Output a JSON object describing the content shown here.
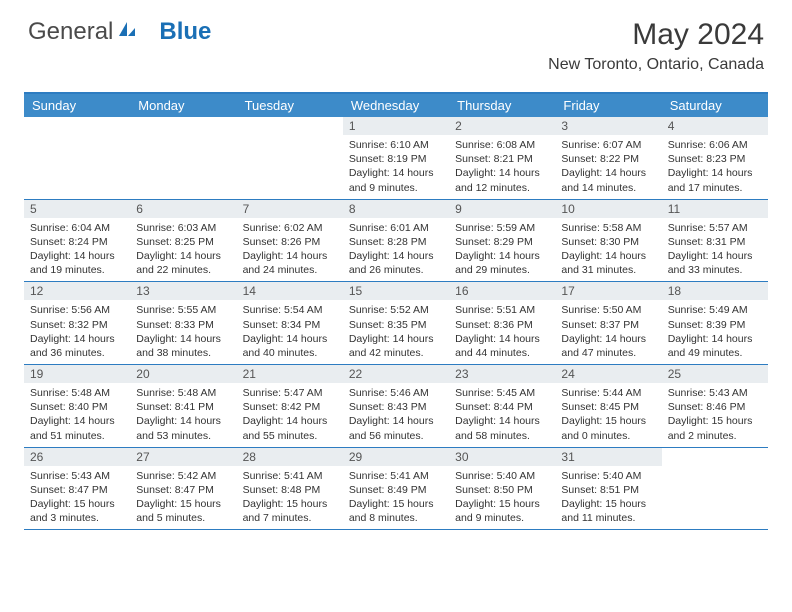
{
  "logo": {
    "text1": "General",
    "text2": "Blue"
  },
  "title": "May 2024",
  "location": "New Toronto, Ontario, Canada",
  "colors": {
    "header_bg": "#3d8bc9",
    "border": "#2d7cc1",
    "daynum_bg": "#e9edf0",
    "logo_gray": "#4a4a4a",
    "logo_blue": "#1a6fb5"
  },
  "day_names": [
    "Sunday",
    "Monday",
    "Tuesday",
    "Wednesday",
    "Thursday",
    "Friday",
    "Saturday"
  ],
  "weeks": [
    [
      {
        "empty": true
      },
      {
        "empty": true
      },
      {
        "empty": true
      },
      {
        "num": "1",
        "sunrise": "6:10 AM",
        "sunset": "8:19 PM",
        "daylight": "14 hours and 9 minutes."
      },
      {
        "num": "2",
        "sunrise": "6:08 AM",
        "sunset": "8:21 PM",
        "daylight": "14 hours and 12 minutes."
      },
      {
        "num": "3",
        "sunrise": "6:07 AM",
        "sunset": "8:22 PM",
        "daylight": "14 hours and 14 minutes."
      },
      {
        "num": "4",
        "sunrise": "6:06 AM",
        "sunset": "8:23 PM",
        "daylight": "14 hours and 17 minutes."
      }
    ],
    [
      {
        "num": "5",
        "sunrise": "6:04 AM",
        "sunset": "8:24 PM",
        "daylight": "14 hours and 19 minutes."
      },
      {
        "num": "6",
        "sunrise": "6:03 AM",
        "sunset": "8:25 PM",
        "daylight": "14 hours and 22 minutes."
      },
      {
        "num": "7",
        "sunrise": "6:02 AM",
        "sunset": "8:26 PM",
        "daylight": "14 hours and 24 minutes."
      },
      {
        "num": "8",
        "sunrise": "6:01 AM",
        "sunset": "8:28 PM",
        "daylight": "14 hours and 26 minutes."
      },
      {
        "num": "9",
        "sunrise": "5:59 AM",
        "sunset": "8:29 PM",
        "daylight": "14 hours and 29 minutes."
      },
      {
        "num": "10",
        "sunrise": "5:58 AM",
        "sunset": "8:30 PM",
        "daylight": "14 hours and 31 minutes."
      },
      {
        "num": "11",
        "sunrise": "5:57 AM",
        "sunset": "8:31 PM",
        "daylight": "14 hours and 33 minutes."
      }
    ],
    [
      {
        "num": "12",
        "sunrise": "5:56 AM",
        "sunset": "8:32 PM",
        "daylight": "14 hours and 36 minutes."
      },
      {
        "num": "13",
        "sunrise": "5:55 AM",
        "sunset": "8:33 PM",
        "daylight": "14 hours and 38 minutes."
      },
      {
        "num": "14",
        "sunrise": "5:54 AM",
        "sunset": "8:34 PM",
        "daylight": "14 hours and 40 minutes."
      },
      {
        "num": "15",
        "sunrise": "5:52 AM",
        "sunset": "8:35 PM",
        "daylight": "14 hours and 42 minutes."
      },
      {
        "num": "16",
        "sunrise": "5:51 AM",
        "sunset": "8:36 PM",
        "daylight": "14 hours and 44 minutes."
      },
      {
        "num": "17",
        "sunrise": "5:50 AM",
        "sunset": "8:37 PM",
        "daylight": "14 hours and 47 minutes."
      },
      {
        "num": "18",
        "sunrise": "5:49 AM",
        "sunset": "8:39 PM",
        "daylight": "14 hours and 49 minutes."
      }
    ],
    [
      {
        "num": "19",
        "sunrise": "5:48 AM",
        "sunset": "8:40 PM",
        "daylight": "14 hours and 51 minutes."
      },
      {
        "num": "20",
        "sunrise": "5:48 AM",
        "sunset": "8:41 PM",
        "daylight": "14 hours and 53 minutes."
      },
      {
        "num": "21",
        "sunrise": "5:47 AM",
        "sunset": "8:42 PM",
        "daylight": "14 hours and 55 minutes."
      },
      {
        "num": "22",
        "sunrise": "5:46 AM",
        "sunset": "8:43 PM",
        "daylight": "14 hours and 56 minutes."
      },
      {
        "num": "23",
        "sunrise": "5:45 AM",
        "sunset": "8:44 PM",
        "daylight": "14 hours and 58 minutes."
      },
      {
        "num": "24",
        "sunrise": "5:44 AM",
        "sunset": "8:45 PM",
        "daylight": "15 hours and 0 minutes."
      },
      {
        "num": "25",
        "sunrise": "5:43 AM",
        "sunset": "8:46 PM",
        "daylight": "15 hours and 2 minutes."
      }
    ],
    [
      {
        "num": "26",
        "sunrise": "5:43 AM",
        "sunset": "8:47 PM",
        "daylight": "15 hours and 3 minutes."
      },
      {
        "num": "27",
        "sunrise": "5:42 AM",
        "sunset": "8:47 PM",
        "daylight": "15 hours and 5 minutes."
      },
      {
        "num": "28",
        "sunrise": "5:41 AM",
        "sunset": "8:48 PM",
        "daylight": "15 hours and 7 minutes."
      },
      {
        "num": "29",
        "sunrise": "5:41 AM",
        "sunset": "8:49 PM",
        "daylight": "15 hours and 8 minutes."
      },
      {
        "num": "30",
        "sunrise": "5:40 AM",
        "sunset": "8:50 PM",
        "daylight": "15 hours and 9 minutes."
      },
      {
        "num": "31",
        "sunrise": "5:40 AM",
        "sunset": "8:51 PM",
        "daylight": "15 hours and 11 minutes."
      },
      {
        "empty": true
      }
    ]
  ],
  "labels": {
    "sunrise": "Sunrise:",
    "sunset": "Sunset:",
    "daylight": "Daylight:"
  }
}
